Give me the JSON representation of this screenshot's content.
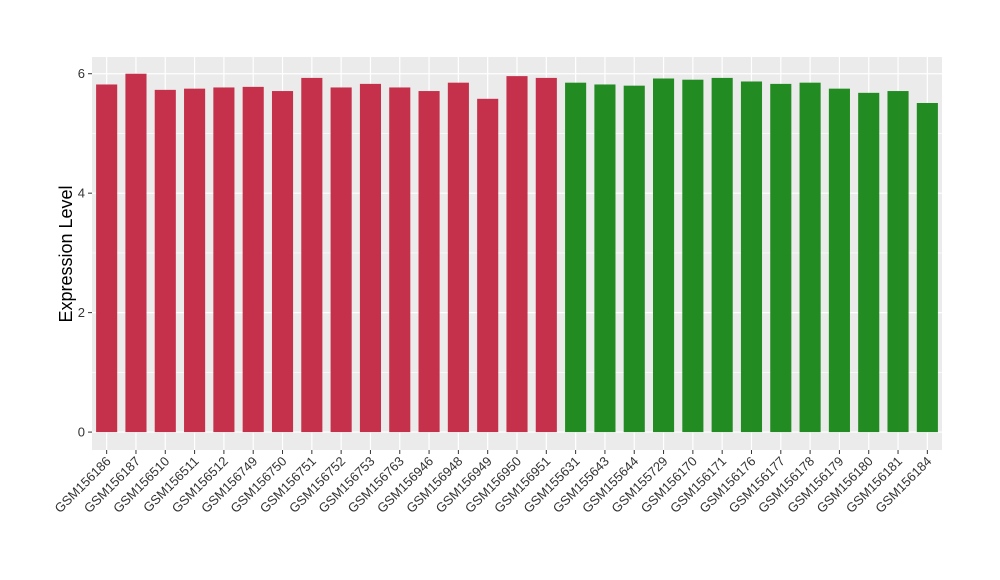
{
  "chart_data": {
    "type": "bar",
    "title": "",
    "xlabel": "",
    "ylabel": "Expression Level",
    "ylim": [
      -0.3,
      6.28
    ],
    "yticks": [
      0,
      2,
      4,
      6
    ],
    "grid": true,
    "categories": [
      "GSM156186",
      "GSM156187",
      "GSM156510",
      "GSM156511",
      "GSM156512",
      "GSM156749",
      "GSM156750",
      "GSM156751",
      "GSM156752",
      "GSM156753",
      "GSM156763",
      "GSM156946",
      "GSM156948",
      "GSM156949",
      "GSM156950",
      "GSM156951",
      "GSM155631",
      "GSM155643",
      "GSM155644",
      "GSM155729",
      "GSM156170",
      "GSM156171",
      "GSM156176",
      "GSM156177",
      "GSM156178",
      "GSM156179",
      "GSM156180",
      "GSM156181",
      "GSM156184"
    ],
    "values": [
      5.82,
      6.0,
      5.73,
      5.75,
      5.77,
      5.78,
      5.71,
      5.93,
      5.77,
      5.83,
      5.77,
      5.71,
      5.85,
      5.58,
      5.96,
      5.93,
      5.85,
      5.82,
      5.8,
      5.92,
      5.9,
      5.93,
      5.87,
      5.83,
      5.85,
      5.75,
      5.68,
      5.71,
      5.51
    ],
    "colors": [
      "#c5314a",
      "#c5314a",
      "#c5314a",
      "#c5314a",
      "#c5314a",
      "#c5314a",
      "#c5314a",
      "#c5314a",
      "#c5314a",
      "#c5314a",
      "#c5314a",
      "#c5314a",
      "#c5314a",
      "#c5314a",
      "#c5314a",
      "#c5314a",
      "#228b22",
      "#228b22",
      "#228b22",
      "#228b22",
      "#228b22",
      "#228b22",
      "#228b22",
      "#228b22",
      "#228b22",
      "#228b22",
      "#228b22",
      "#228b22",
      "#228b22"
    ],
    "panel_background": "#ebebeb",
    "grid_color": "#ffffff"
  }
}
